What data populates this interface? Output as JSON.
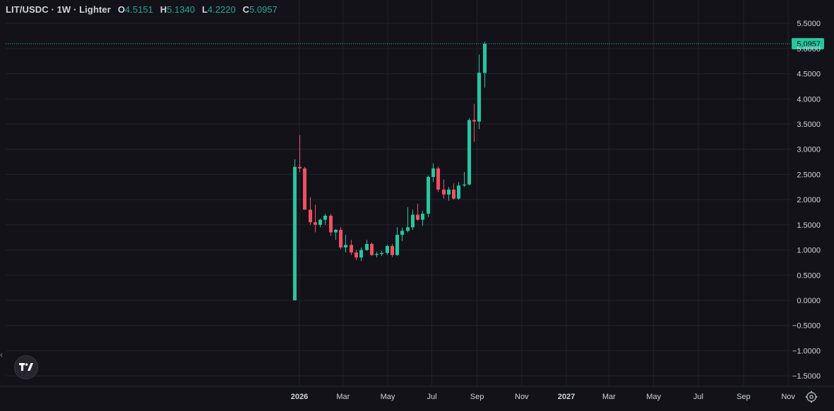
{
  "header": {
    "symbol": "LIT/USDC · 1W · Lighter",
    "o_label": "O",
    "o_value": "4.5151",
    "h_label": "H",
    "h_value": "5.1340",
    "l_label": "L",
    "l_value": "4.2220",
    "c_label": "C",
    "c_value": "5.0957"
  },
  "colors": {
    "up": "#26c6a0",
    "down": "#ef5063",
    "bg": "#131219",
    "grid": "#24232b",
    "text": "#d1d4dc"
  },
  "icons": {
    "logo": "tradingview-logo-icon",
    "settings": "gear-icon",
    "collapse": "chevron-left-icon"
  },
  "chart_data": {
    "type": "candlestick",
    "y_ticks": [
      "5.5000",
      "5.0000",
      "4.5000",
      "4.0000",
      "3.5000",
      "3.0000",
      "2.5000",
      "2.0000",
      "1.5000",
      "1.0000",
      "0.5000",
      "0.0000",
      "−0.5000",
      "−1.0000",
      "−1.5000"
    ],
    "y_tick_values": [
      5.5,
      5.0,
      4.5,
      4.0,
      3.5,
      3.0,
      2.5,
      2.0,
      1.5,
      1.0,
      0.5,
      0.0,
      -0.5,
      -1.0,
      -1.5
    ],
    "ylim": [
      -1.75,
      5.95
    ],
    "x_ticks": [
      {
        "label": "2026",
        "week": 0,
        "bold": true
      },
      {
        "label": "Mar",
        "week": 8.5
      },
      {
        "label": "May",
        "week": 17.2
      },
      {
        "label": "Jul",
        "week": 25.8
      },
      {
        "label": "Sep",
        "week": 34.6
      },
      {
        "label": "Nov",
        "week": 43.3
      },
      {
        "label": "2027",
        "week": 52,
        "bold": true
      },
      {
        "label": "Mar",
        "week": 60.3
      },
      {
        "label": "May",
        "week": 69
      },
      {
        "label": "Jul",
        "week": 77.7
      },
      {
        "label": "Sep",
        "week": 86.5
      },
      {
        "label": "Nov",
        "week": 95.2
      }
    ],
    "last_price_label": "5.0957",
    "last_price": 5.0957,
    "candles": [
      {
        "w": -1,
        "o": 0.0,
        "h": 2.8,
        "l": 0.0,
        "c": 2.65
      },
      {
        "w": 0,
        "o": 2.65,
        "h": 3.28,
        "l": 2.55,
        "c": 2.62
      },
      {
        "w": 1,
        "o": 2.62,
        "h": 2.65,
        "l": 1.8,
        "c": 1.8
      },
      {
        "w": 2,
        "o": 1.8,
        "h": 2.05,
        "l": 1.5,
        "c": 1.55
      },
      {
        "w": 3,
        "o": 1.55,
        "h": 1.9,
        "l": 1.35,
        "c": 1.5
      },
      {
        "w": 4,
        "o": 1.5,
        "h": 1.62,
        "l": 1.45,
        "c": 1.6
      },
      {
        "w": 5,
        "o": 1.6,
        "h": 1.72,
        "l": 1.5,
        "c": 1.68
      },
      {
        "w": 6,
        "o": 1.68,
        "h": 1.72,
        "l": 1.28,
        "c": 1.35
      },
      {
        "w": 7,
        "o": 1.35,
        "h": 1.42,
        "l": 1.2,
        "c": 1.4
      },
      {
        "w": 8,
        "o": 1.4,
        "h": 1.45,
        "l": 1.02,
        "c": 1.05
      },
      {
        "w": 9,
        "o": 1.05,
        "h": 1.3,
        "l": 0.95,
        "c": 1.1
      },
      {
        "w": 10,
        "o": 1.1,
        "h": 1.2,
        "l": 0.9,
        "c": 0.95
      },
      {
        "w": 11,
        "o": 0.95,
        "h": 1.0,
        "l": 0.8,
        "c": 0.85
      },
      {
        "w": 12,
        "o": 0.85,
        "h": 1.05,
        "l": 0.78,
        "c": 1.0
      },
      {
        "w": 13,
        "o": 1.0,
        "h": 1.2,
        "l": 0.98,
        "c": 1.12
      },
      {
        "w": 14,
        "o": 1.12,
        "h": 1.15,
        "l": 0.88,
        "c": 0.9
      },
      {
        "w": 15,
        "o": 0.9,
        "h": 0.96,
        "l": 0.85,
        "c": 0.92
      },
      {
        "w": 16,
        "o": 0.92,
        "h": 0.98,
        "l": 0.88,
        "c": 0.94
      },
      {
        "w": 17,
        "o": 0.94,
        "h": 1.1,
        "l": 0.9,
        "c": 1.08
      },
      {
        "w": 18,
        "o": 1.08,
        "h": 1.12,
        "l": 0.86,
        "c": 0.9
      },
      {
        "w": 19,
        "o": 0.9,
        "h": 1.45,
        "l": 0.88,
        "c": 1.3
      },
      {
        "w": 20,
        "o": 1.3,
        "h": 1.45,
        "l": 1.18,
        "c": 1.38
      },
      {
        "w": 21,
        "o": 1.38,
        "h": 1.85,
        "l": 1.35,
        "c": 1.45
      },
      {
        "w": 22,
        "o": 1.45,
        "h": 1.8,
        "l": 1.4,
        "c": 1.7
      },
      {
        "w": 23,
        "o": 1.7,
        "h": 1.92,
        "l": 1.58,
        "c": 1.6
      },
      {
        "w": 24,
        "o": 1.6,
        "h": 1.78,
        "l": 1.48,
        "c": 1.72
      },
      {
        "w": 25,
        "o": 1.72,
        "h": 2.48,
        "l": 1.65,
        "c": 2.45
      },
      {
        "w": 26,
        "o": 2.45,
        "h": 2.72,
        "l": 2.35,
        "c": 2.62
      },
      {
        "w": 27,
        "o": 2.62,
        "h": 2.66,
        "l": 2.15,
        "c": 2.2
      },
      {
        "w": 28,
        "o": 2.2,
        "h": 2.4,
        "l": 2.02,
        "c": 2.1
      },
      {
        "w": 29,
        "o": 2.1,
        "h": 2.25,
        "l": 1.98,
        "c": 2.2
      },
      {
        "w": 30,
        "o": 2.2,
        "h": 2.32,
        "l": 2.0,
        "c": 2.02
      },
      {
        "w": 31,
        "o": 2.02,
        "h": 2.35,
        "l": 2.0,
        "c": 2.28
      },
      {
        "w": 32,
        "o": 2.28,
        "h": 2.55,
        "l": 2.25,
        "c": 2.3
      },
      {
        "w": 33,
        "o": 2.3,
        "h": 3.62,
        "l": 2.28,
        "c": 3.58
      },
      {
        "w": 34,
        "o": 3.58,
        "h": 3.9,
        "l": 3.15,
        "c": 3.55
      },
      {
        "w": 35,
        "o": 3.55,
        "h": 4.88,
        "l": 3.4,
        "c": 4.52
      },
      {
        "w": 36,
        "o": 4.5151,
        "h": 5.134,
        "l": 4.222,
        "c": 5.0957
      }
    ]
  }
}
